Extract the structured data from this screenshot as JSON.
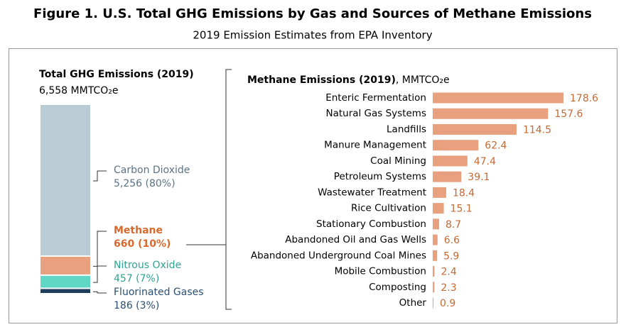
{
  "header": {
    "title": "Figure 1. U.S. Total GHG Emissions by Gas and Sources of Methane Emissions",
    "subtitle": "2019 Emission Estimates from EPA Inventory"
  },
  "chart_data": [
    {
      "type": "stacked-bar",
      "title": "Total GHG Emissions (2019)",
      "subtitle": "6,558 MMTCO₂e",
      "series": [
        {
          "name": "Carbon Dioxide",
          "color": "#b9cbd4",
          "label_color": "#5b7383",
          "values": [
            5256
          ],
          "value_labels": [
            "5,256 (80%)"
          ]
        },
        {
          "name": "Methane",
          "color": "#e8a07f",
          "label_color": "#d8692e",
          "values": [
            660
          ],
          "value_labels": [
            "660 (10%)"
          ]
        },
        {
          "name": "Nitrous Oxide",
          "color": "#5fd6c6",
          "label_color": "#2fa393",
          "values": [
            457
          ],
          "value_labels": [
            "457 (7%)"
          ]
        },
        {
          "name": "Fluorinated Gases",
          "color": "#1f3d5c",
          "label_color": "#2b4f73",
          "values": [
            186
          ],
          "value_labels": [
            "186 (3%)"
          ]
        }
      ]
    },
    {
      "type": "hbar",
      "title": "Methane Emissions (2019)",
      "units_label": ", MMTCO₂e",
      "color": "#e8a07f",
      "label_color": "#c46a35",
      "categories": [
        "Enteric Fermentation",
        "Natural Gas Systems",
        "Landfills",
        "Manure Management",
        "Coal Mining",
        "Petroleum Systems",
        "Wastewater Treatment",
        "Rice Cultivation",
        "Stationary Combustion",
        "Abandoned Oil and Gas Wells",
        "Abandoned Underground Coal Mines",
        "Mobile Combustion",
        "Composting",
        "Other"
      ],
      "values": [
        178.6,
        157.6,
        114.5,
        62.4,
        47.4,
        39.1,
        18.4,
        15.1,
        8.7,
        6.6,
        5.9,
        2.4,
        2.3,
        0.9
      ]
    }
  ]
}
